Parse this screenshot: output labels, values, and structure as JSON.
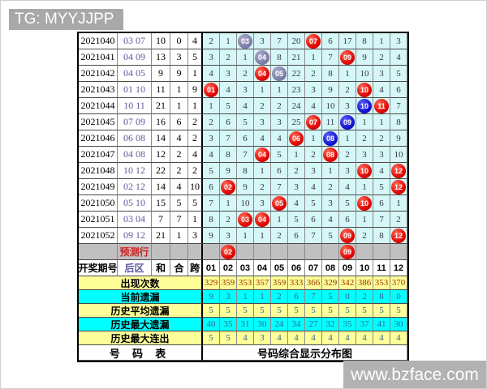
{
  "header_badge": "TG: MYYJJPP",
  "watermark": "www.bzface.com",
  "colors": {
    "red_ball": "#e10000",
    "blue_ball": "#1212cc",
    "gray_ball": "#7d7da6",
    "grid_bg": "#d6f7f7",
    "yellow": "#ffff99",
    "cyan": "#00ffff",
    "row_gray": "#c0c0c0",
    "badge_gray": "#a8a8a8",
    "watermark_gray": "#b2b2b2",
    "back_text": "#5b5b9e",
    "appear_text": "#993300",
    "omission_text": "#336699"
  },
  "chart_data": {
    "type": "table",
    "title": "号码综合显示分布图",
    "columns": [
      "01",
      "02",
      "03",
      "04",
      "05",
      "06",
      "07",
      "08",
      "09",
      "10",
      "11",
      "12"
    ],
    "header": {
      "period": "开奖期号",
      "back": "后区",
      "sum": "和",
      "tail": "合",
      "span": "跨"
    },
    "ball_legend": {
      "red": "drawn number",
      "blue": "drawn number (blue mark)",
      "gray": "drawn number (gray mark)"
    },
    "rows": [
      {
        "period": "2021040",
        "back": "03 07",
        "sum": "10",
        "tail": "0",
        "span": "4",
        "cells": [
          "2",
          "1",
          {
            "v": "03",
            "ball": "gray"
          },
          "3",
          "7",
          "20",
          {
            "v": "07",
            "ball": "red"
          },
          "6",
          "17",
          "8",
          "1",
          "3"
        ]
      },
      {
        "period": "2021041",
        "back": "04 09",
        "sum": "13",
        "tail": "3",
        "span": "5",
        "cells": [
          "3",
          "2",
          "1",
          {
            "v": "04",
            "ball": "gray"
          },
          "8",
          "21",
          "1",
          "7",
          {
            "v": "09",
            "ball": "red"
          },
          "9",
          "2",
          "4"
        ]
      },
      {
        "period": "2021042",
        "back": "04 05",
        "sum": "9",
        "tail": "9",
        "span": "1",
        "cells": [
          "4",
          "3",
          "2",
          {
            "v": "04",
            "ball": "red"
          },
          {
            "v": "05",
            "ball": "gray"
          },
          "22",
          "2",
          "8",
          "1",
          "10",
          "3",
          "5"
        ]
      },
      {
        "period": "2021043",
        "back": "01 10",
        "sum": "11",
        "tail": "1",
        "span": "9",
        "cells": [
          {
            "v": "01",
            "ball": "red"
          },
          "4",
          "3",
          "1",
          "1",
          "23",
          "3",
          "9",
          "2",
          {
            "v": "10",
            "ball": "red"
          },
          "4",
          "6"
        ]
      },
      {
        "period": "2021044",
        "back": "10 11",
        "sum": "21",
        "tail": "1",
        "span": "1",
        "cells": [
          "1",
          "5",
          "4",
          "2",
          "2",
          "24",
          "4",
          "10",
          "3",
          {
            "v": "10",
            "ball": "blue"
          },
          {
            "v": "11",
            "ball": "red"
          },
          "7"
        ]
      },
      {
        "period": "2021045",
        "back": "07 09",
        "sum": "16",
        "tail": "6",
        "span": "2",
        "cells": [
          "2",
          "6",
          "5",
          "3",
          "3",
          "25",
          {
            "v": "07",
            "ball": "red"
          },
          "11",
          {
            "v": "09",
            "ball": "blue"
          },
          "1",
          "1",
          "8"
        ]
      },
      {
        "period": "2021046",
        "back": "06 08",
        "sum": "14",
        "tail": "4",
        "span": "2",
        "cells": [
          "3",
          "7",
          "6",
          "4",
          "4",
          {
            "v": "06",
            "ball": "red"
          },
          "1",
          {
            "v": "08",
            "ball": "blue"
          },
          "1",
          "2",
          "2",
          "9"
        ]
      },
      {
        "period": "2021047",
        "back": "04 08",
        "sum": "12",
        "tail": "2",
        "span": "4",
        "cells": [
          "4",
          "8",
          "7",
          {
            "v": "04",
            "ball": "red"
          },
          "5",
          "1",
          "2",
          {
            "v": "08",
            "ball": "red"
          },
          "2",
          "3",
          "3",
          "10"
        ]
      },
      {
        "period": "2021048",
        "back": "10 12",
        "sum": "22",
        "tail": "2",
        "span": "2",
        "cells": [
          "5",
          "9",
          "8",
          "1",
          "6",
          "2",
          "3",
          "1",
          "3",
          {
            "v": "10",
            "ball": "red"
          },
          "4",
          {
            "v": "12",
            "ball": "red"
          }
        ]
      },
      {
        "period": "2021049",
        "back": "02 12",
        "sum": "14",
        "tail": "4",
        "span": "10",
        "cells": [
          "6",
          {
            "v": "02",
            "ball": "red"
          },
          "9",
          "2",
          "7",
          "3",
          "4",
          "2",
          "4",
          "1",
          "5",
          {
            "v": "12",
            "ball": "red"
          }
        ]
      },
      {
        "period": "2021050",
        "back": "05 10",
        "sum": "15",
        "tail": "5",
        "span": "5",
        "cells": [
          "7",
          "1",
          "10",
          "3",
          {
            "v": "05",
            "ball": "red"
          },
          "4",
          "5",
          "3",
          "5",
          {
            "v": "10",
            "ball": "red"
          },
          "6",
          "1"
        ]
      },
      {
        "period": "2021051",
        "back": "03 04",
        "sum": "7",
        "tail": "7",
        "span": "1",
        "cells": [
          "8",
          "2",
          {
            "v": "03",
            "ball": "red"
          },
          {
            "v": "04",
            "ball": "red"
          },
          "1",
          "5",
          "6",
          "4",
          "6",
          "1",
          "7",
          "2"
        ]
      },
      {
        "period": "2021052",
        "back": "09 12",
        "sum": "21",
        "tail": "1",
        "span": "3",
        "cells": [
          "9",
          "3",
          "1",
          "1",
          "2",
          "6",
          "7",
          "5",
          {
            "v": "09",
            "ball": "red"
          },
          "2",
          "8",
          {
            "v": "12",
            "ball": "red"
          }
        ]
      }
    ],
    "prediction": {
      "label": "预测行",
      "cells": [
        "",
        {
          "v": "02",
          "ball": "red"
        },
        "",
        "",
        "",
        "",
        "",
        "",
        {
          "v": "09",
          "ball": "red"
        },
        "",
        "",
        ""
      ]
    },
    "stats": [
      {
        "label": "出现次数",
        "bg": "yellow",
        "color": "maroon",
        "values": [
          "329",
          "359",
          "353",
          "357",
          "359",
          "333",
          "366",
          "329",
          "342",
          "386",
          "353",
          "370"
        ]
      },
      {
        "label": "当前遗漏",
        "bg": "cyan",
        "color": "blue",
        "values": [
          "9",
          "3",
          "1",
          "1",
          "2",
          "6",
          "7",
          "5",
          "0",
          "2",
          "8",
          "0"
        ]
      },
      {
        "label": "历史平均遗漏",
        "bg": "yellow",
        "color": "blue",
        "values": [
          "5",
          "5",
          "5",
          "5",
          "5",
          "5",
          "5",
          "5",
          "5",
          "5",
          "5",
          "5"
        ]
      },
      {
        "label": "历史最大遗漏",
        "bg": "cyan",
        "color": "blue",
        "values": [
          "40",
          "35",
          "31",
          "30",
          "24",
          "34",
          "27",
          "32",
          "35",
          "37",
          "41",
          "30"
        ]
      },
      {
        "label": "历史最大连出",
        "bg": "yellow",
        "color": "blue",
        "values": [
          "5",
          "5",
          "4",
          "3",
          "4",
          "4",
          "4",
          "4",
          "4",
          "4",
          "4",
          "4"
        ]
      }
    ],
    "footer_left": "号 码 表",
    "footer_right": "号码综合显示分布图"
  }
}
